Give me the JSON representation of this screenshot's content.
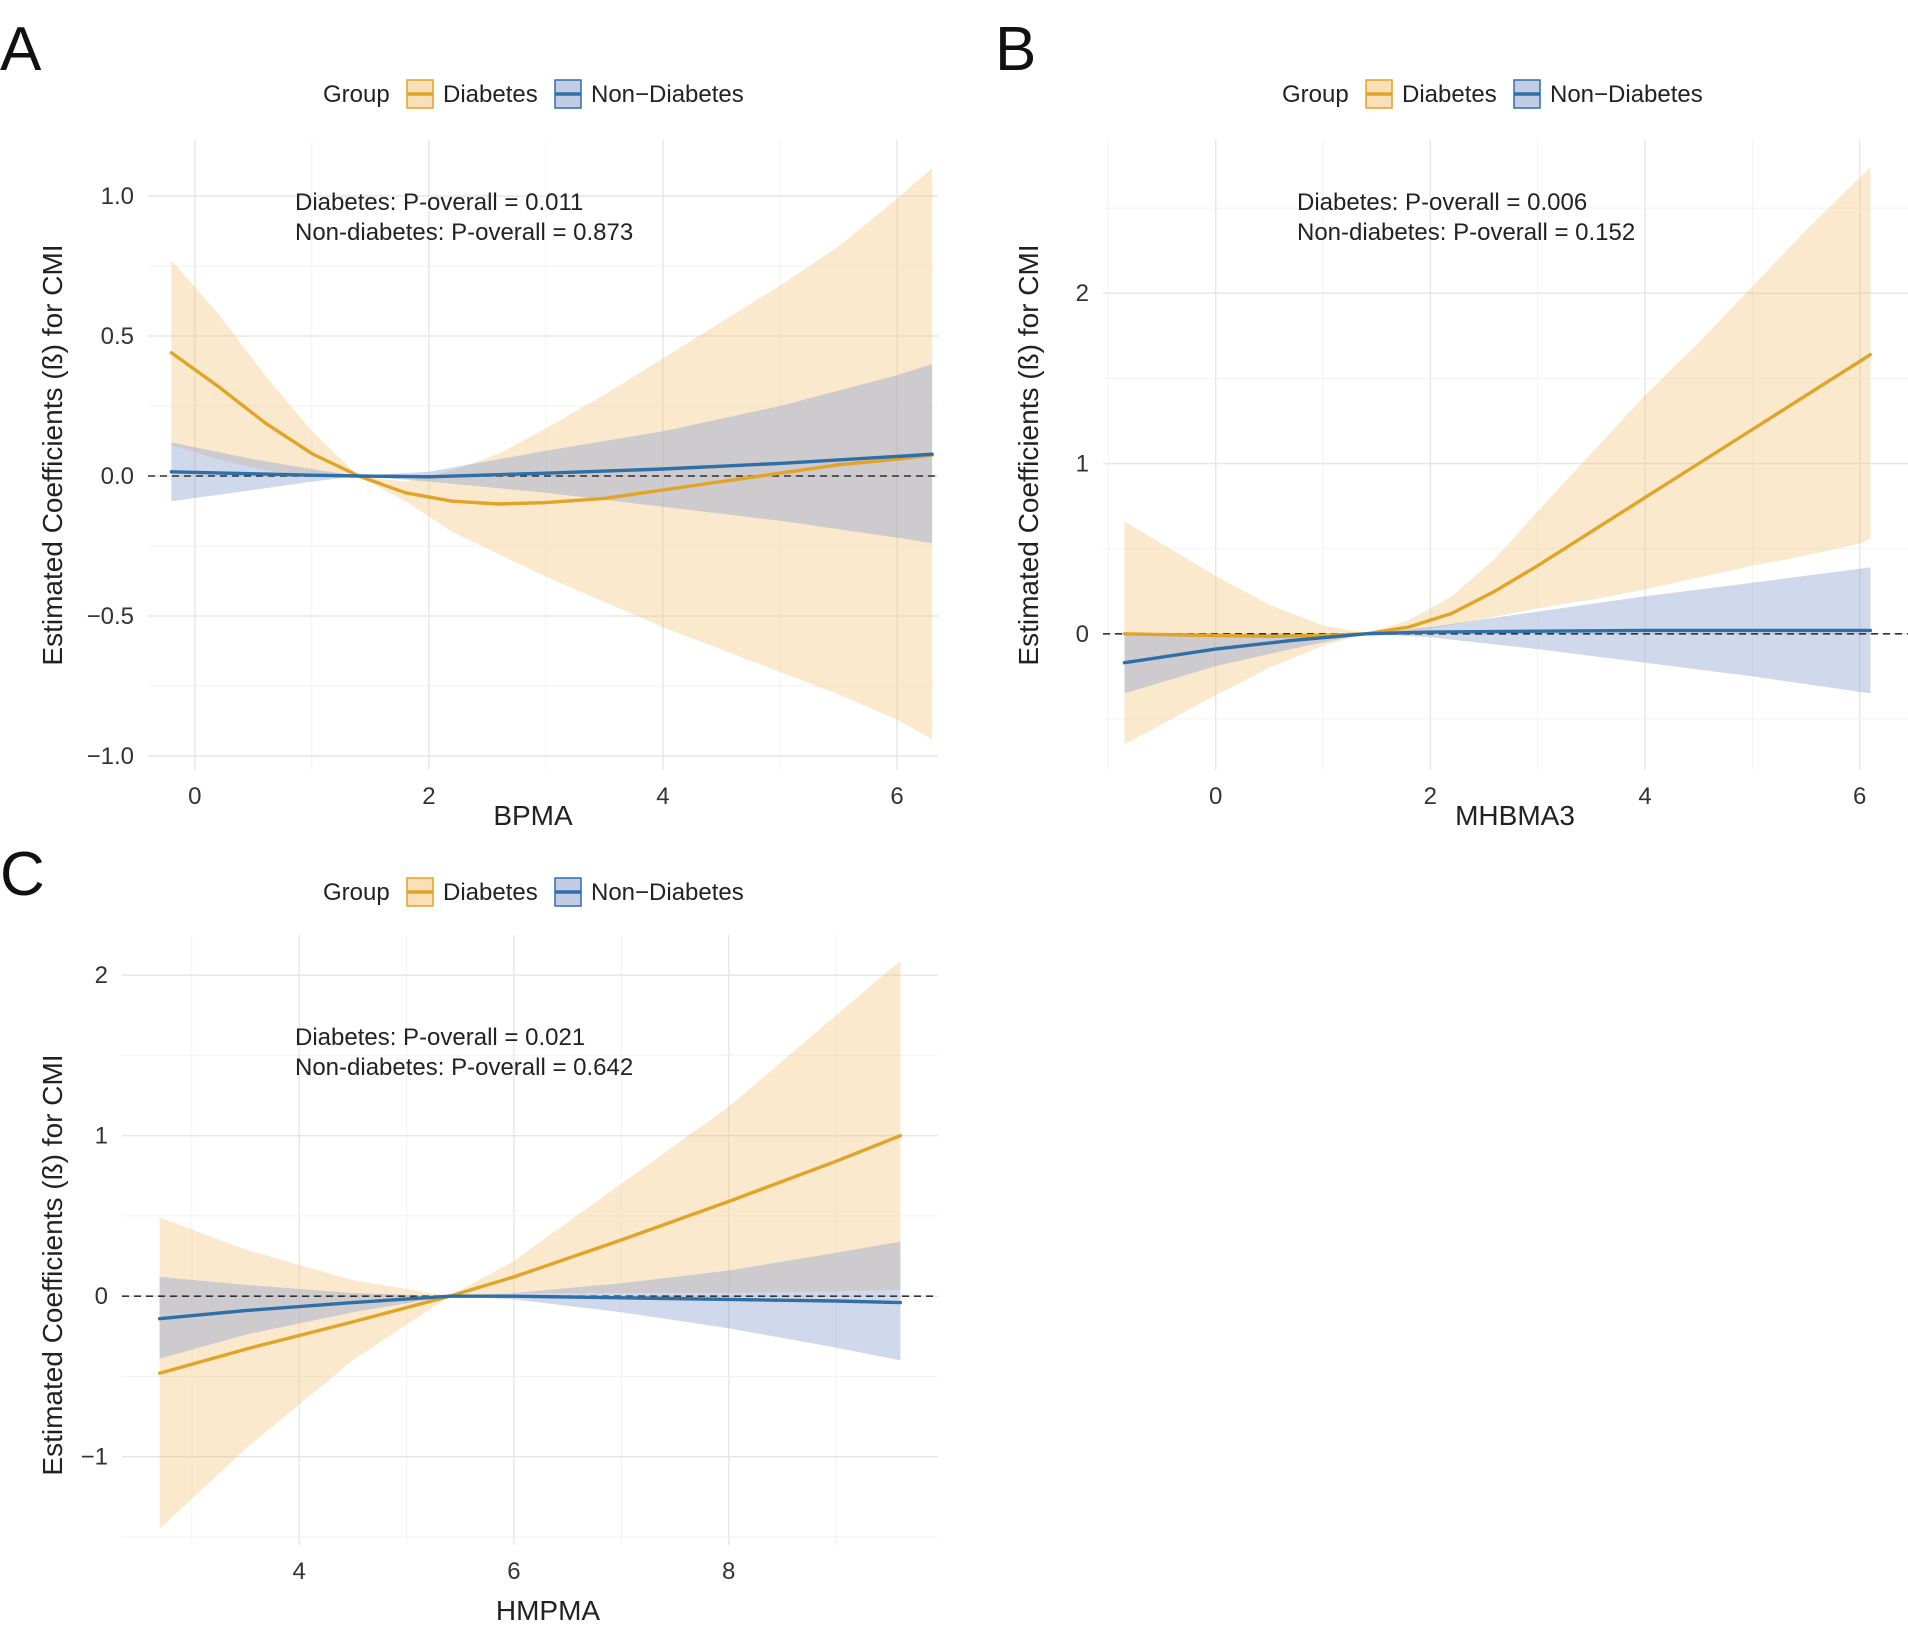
{
  "figure": {
    "colors": {
      "diabetes": "#E1A426",
      "diabetes_band": "#F5C57D",
      "non_diabetes": "#2E6FA7",
      "non_diabetes_band": "#8FA3CF"
    }
  },
  "chart_data": [
    {
      "type": "line",
      "panel_label": "A",
      "legend": {
        "title": "Group",
        "entries": [
          "Diabetes",
          "Non−Diabetes"
        ]
      },
      "annotations": [
        "Diabetes: P-overall = 0.011",
        "Non-diabetes: P-overall = 0.873"
      ],
      "xlabel": "BPMA",
      "ylabel": "Estimated Coefficients (ß) for CMI",
      "xlim": [
        -0.4,
        6.35
      ],
      "ylim": [
        -1.05,
        1.2
      ],
      "xticks": [
        0,
        2,
        4,
        6
      ],
      "xtick_labels": [
        "0",
        "2",
        "4",
        "6"
      ],
      "yticks": [
        -1.0,
        -0.5,
        0.0,
        0.5,
        1.0
      ],
      "ytick_labels": [
        "−1.0",
        "−0.5",
        "0.0",
        "0.5",
        "1.0"
      ],
      "reference_line": 0,
      "series": [
        {
          "name": "Diabetes",
          "x": [
            -0.2,
            0.2,
            0.6,
            1.0,
            1.4,
            1.8,
            2.2,
            2.6,
            3.0,
            3.5,
            4.0,
            4.5,
            5.0,
            5.5,
            6.0,
            6.3
          ],
          "y": [
            0.44,
            0.32,
            0.19,
            0.08,
            0.0,
            -0.06,
            -0.09,
            -0.1,
            -0.095,
            -0.08,
            -0.05,
            -0.02,
            0.01,
            0.04,
            0.06,
            0.075
          ],
          "lower": [
            0.11,
            0.06,
            0.02,
            -0.005,
            0.0,
            -0.09,
            -0.2,
            -0.28,
            -0.36,
            -0.45,
            -0.54,
            -0.62,
            -0.7,
            -0.78,
            -0.87,
            -0.94
          ],
          "upper": [
            0.77,
            0.58,
            0.36,
            0.16,
            0.0,
            -0.02,
            0.02,
            0.08,
            0.17,
            0.29,
            0.42,
            0.55,
            0.68,
            0.82,
            0.99,
            1.1
          ]
        },
        {
          "name": "Non-Diabetes",
          "x": [
            -0.2,
            0.5,
            1.0,
            1.4,
            2.0,
            3.0,
            4.0,
            5.0,
            6.0,
            6.3
          ],
          "y": [
            0.015,
            0.008,
            0.003,
            0.0,
            -0.003,
            0.01,
            0.025,
            0.045,
            0.07,
            0.078
          ],
          "lower": [
            -0.09,
            -0.05,
            -0.02,
            0.0,
            -0.02,
            -0.06,
            -0.11,
            -0.16,
            -0.22,
            -0.24
          ],
          "upper": [
            0.12,
            0.06,
            0.025,
            0.0,
            0.015,
            0.09,
            0.16,
            0.25,
            0.36,
            0.4
          ]
        }
      ]
    },
    {
      "type": "line",
      "panel_label": "B",
      "legend": {
        "title": "Group",
        "entries": [
          "Diabetes",
          "Non−Diabetes"
        ]
      },
      "annotations": [
        "Diabetes: P-overall = 0.006",
        "Non-diabetes: P-overall = 0.152"
      ],
      "xlabel": "MHBMA3",
      "ylabel": "Estimated Coefficients (ß) for CMI",
      "xlim": [
        -1.05,
        6.45
      ],
      "ylim": [
        -0.8,
        2.9
      ],
      "xticks": [
        0,
        2,
        4,
        6
      ],
      "xtick_labels": [
        "0",
        "2",
        "4",
        "6"
      ],
      "yticks": [
        0,
        1,
        2
      ],
      "ytick_labels": [
        "0",
        "1",
        "2"
      ],
      "reference_line": 0,
      "series": [
        {
          "name": "Diabetes",
          "x": [
            -0.85,
            0.0,
            0.5,
            1.0,
            1.4,
            1.8,
            2.2,
            2.6,
            3.0,
            3.5,
            4.0,
            4.5,
            5.0,
            5.5,
            6.0,
            6.1
          ],
          "y": [
            0.0,
            -0.01,
            -0.015,
            -0.01,
            0.0,
            0.04,
            0.12,
            0.25,
            0.4,
            0.6,
            0.8,
            1.0,
            1.2,
            1.4,
            1.6,
            1.64
          ],
          "lower": [
            -0.65,
            -0.36,
            -0.2,
            -0.07,
            0.0,
            0.01,
            0.05,
            0.1,
            0.15,
            0.2,
            0.26,
            0.33,
            0.4,
            0.46,
            0.53,
            0.56
          ],
          "upper": [
            0.66,
            0.34,
            0.17,
            0.05,
            0.0,
            0.08,
            0.22,
            0.44,
            0.72,
            1.06,
            1.4,
            1.71,
            2.04,
            2.37,
            2.68,
            2.74
          ]
        },
        {
          "name": "Non-Diabetes",
          "x": [
            -0.85,
            0.0,
            0.7,
            1.4,
            2.0,
            3.0,
            4.0,
            5.0,
            6.1
          ],
          "y": [
            -0.17,
            -0.09,
            -0.04,
            0.0,
            0.01,
            0.015,
            0.02,
            0.02,
            0.02
          ],
          "lower": [
            -0.35,
            -0.19,
            -0.09,
            0.0,
            -0.02,
            -0.09,
            -0.17,
            -0.25,
            -0.35
          ],
          "upper": [
            0.0,
            0.0,
            0.0,
            0.0,
            0.04,
            0.13,
            0.22,
            0.3,
            0.39
          ]
        }
      ]
    },
    {
      "type": "line",
      "panel_label": "C",
      "legend": {
        "title": "Group",
        "entries": [
          "Diabetes",
          "Non−Diabetes"
        ]
      },
      "annotations": [
        "Diabetes: P-overall = 0.021",
        "Non-diabetes: P-overall = 0.642"
      ],
      "xlabel": "HMPMA",
      "ylabel": "Estimated Coefficients (ß) for CMI",
      "xlim": [
        2.35,
        9.95
      ],
      "ylim": [
        -1.55,
        2.25
      ],
      "xticks": [
        4,
        6,
        8
      ],
      "xtick_labels": [
        "4",
        "6",
        "8"
      ],
      "yticks": [
        -1,
        0,
        1,
        2
      ],
      "ytick_labels": [
        "−1",
        "0",
        "1",
        "2"
      ],
      "reference_line": 0,
      "series": [
        {
          "name": "Diabetes",
          "x": [
            2.7,
            3.5,
            4.5,
            5.4,
            6.0,
            7.0,
            8.0,
            9.0,
            9.6
          ],
          "y": [
            -0.48,
            -0.33,
            -0.16,
            0.0,
            0.12,
            0.35,
            0.59,
            0.84,
            1.0
          ],
          "lower": [
            -1.45,
            -0.95,
            -0.4,
            0.0,
            0.02,
            0.02,
            0.02,
            0.03,
            0.04
          ],
          "upper": [
            0.49,
            0.29,
            0.1,
            0.0,
            0.22,
            0.7,
            1.18,
            1.75,
            2.09
          ]
        },
        {
          "name": "Non-Diabetes",
          "x": [
            2.7,
            3.5,
            4.5,
            5.4,
            6.0,
            7.0,
            8.0,
            9.0,
            9.6
          ],
          "y": [
            -0.14,
            -0.09,
            -0.04,
            0.0,
            0.0,
            -0.01,
            -0.02,
            -0.03,
            -0.04
          ],
          "lower": [
            -0.39,
            -0.24,
            -0.1,
            0.0,
            -0.02,
            -0.1,
            -0.2,
            -0.32,
            -0.4
          ],
          "upper": [
            0.12,
            0.07,
            0.02,
            0.0,
            0.02,
            0.08,
            0.16,
            0.27,
            0.34
          ]
        }
      ]
    }
  ]
}
